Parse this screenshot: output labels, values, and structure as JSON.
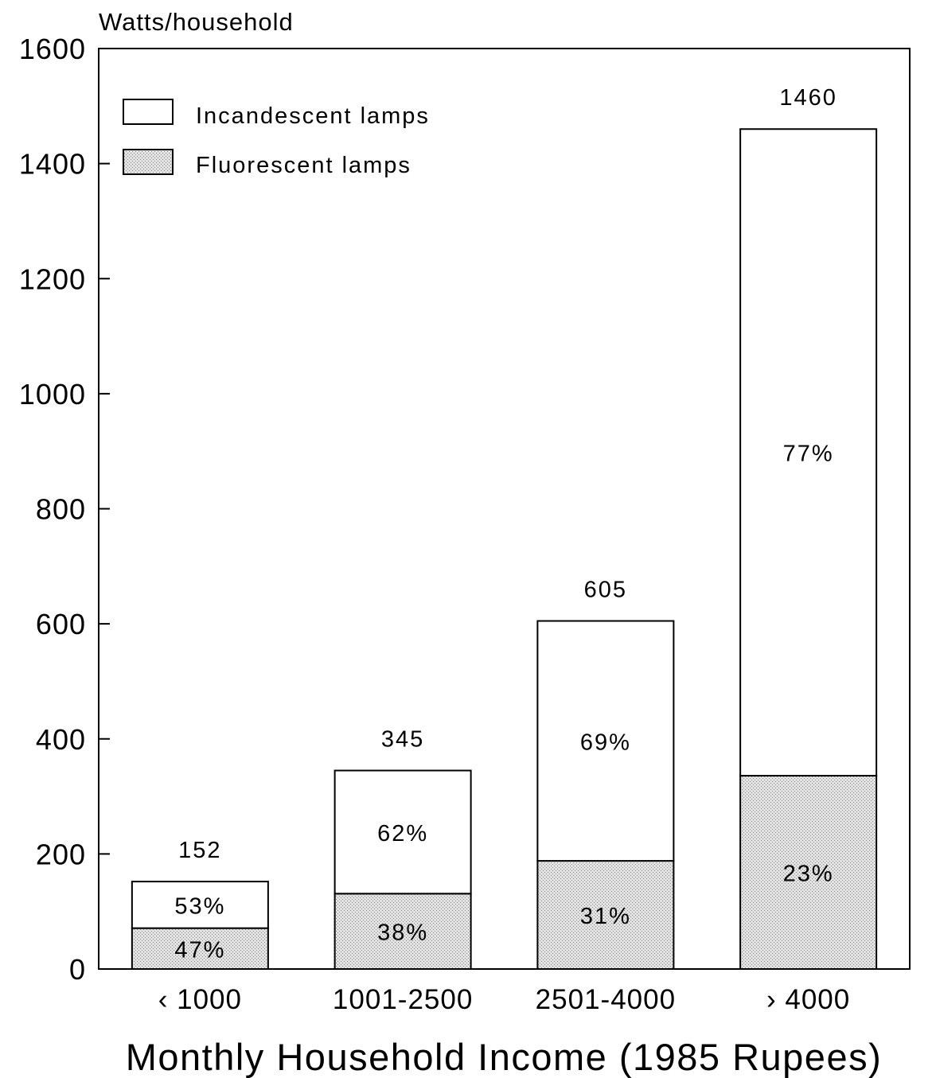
{
  "chart_data": {
    "type": "bar",
    "stacked": true,
    "ylabel": "Watts/household",
    "xlabel": "Monthly Household Income (1985 Rupees)",
    "ylim": [
      0,
      1600
    ],
    "yticks": [
      "0",
      "200",
      "400",
      "600",
      "800",
      "1000",
      "1200",
      "1400",
      "1600"
    ],
    "categories": [
      "‹ 1000",
      "1001-2500",
      "2501-4000",
      "› 4000"
    ],
    "totals": [
      152,
      345,
      605,
      1460
    ],
    "total_labels": [
      "152",
      "345",
      "605",
      "1460"
    ],
    "series": [
      {
        "name": "Fluorescent lamps",
        "values": [
          71,
          131,
          188,
          336
        ],
        "percent_labels": [
          "47%",
          "38%",
          "31%",
          "23%"
        ],
        "color": "#d4d4d4",
        "pattern": "stipple"
      },
      {
        "name": "Incandescent lamps",
        "values": [
          81,
          214,
          417,
          1124
        ],
        "percent_labels": [
          "53%",
          "62%",
          "69%",
          "77%"
        ],
        "color": "#ffffff",
        "pattern": "none"
      }
    ],
    "legend": {
      "position": "top-left",
      "entries": [
        "Incandescent lamps",
        "Fluorescent lamps"
      ]
    },
    "grid": false
  }
}
